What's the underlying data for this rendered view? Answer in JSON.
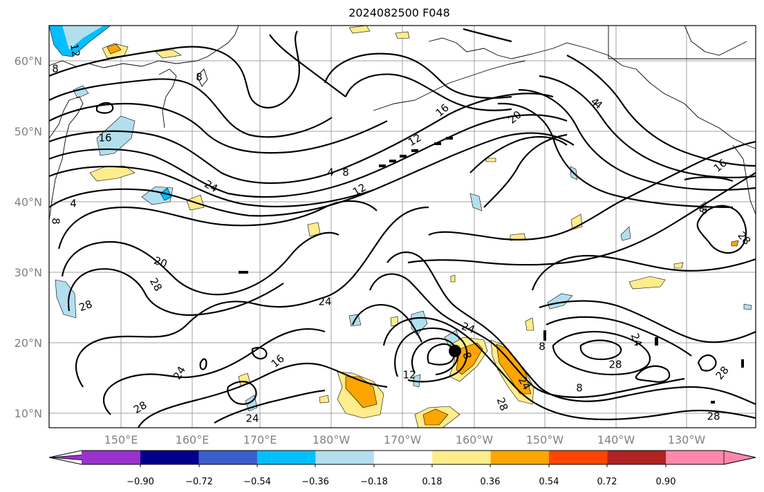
{
  "title": "2024082500 F048",
  "map": {
    "lat_labels": [
      "60°N",
      "50°N",
      "40°N",
      "30°N",
      "20°N",
      "10°N"
    ],
    "lon_labels": [
      "150°E",
      "160°E",
      "170°E",
      "180°W",
      "170°W",
      "160°W",
      "150°W",
      "140°W",
      "130°W"
    ],
    "contour_labels": [
      "12",
      "8",
      "8",
      "16",
      "4",
      "8",
      "12",
      "16",
      "20",
      "4",
      "12",
      "16",
      "24",
      "4",
      "8",
      "20",
      "28",
      "28",
      "24",
      "24",
      "16",
      "12",
      "24",
      "8",
      "24",
      "28",
      "28",
      "24",
      "28",
      "28",
      "8",
      "24",
      "28",
      "8",
      "4",
      "28",
      "8"
    ],
    "storm_marker": "tropical-cyclone-center"
  },
  "colorbar": {
    "colors": [
      "#9932CC",
      "#00008B",
      "#3A5FCD",
      "#00BFFF",
      "#B2DFEE",
      "#FFFFFF",
      "#FFEC8B",
      "#FFA500",
      "#FF4500",
      "#B22222",
      "#FF88AA"
    ],
    "tick_labels": [
      "−0.90",
      "−0.72",
      "−0.54",
      "−0.36",
      "−0.18",
      "0.18",
      "0.36",
      "0.54",
      "0.72",
      "0.90"
    ]
  }
}
